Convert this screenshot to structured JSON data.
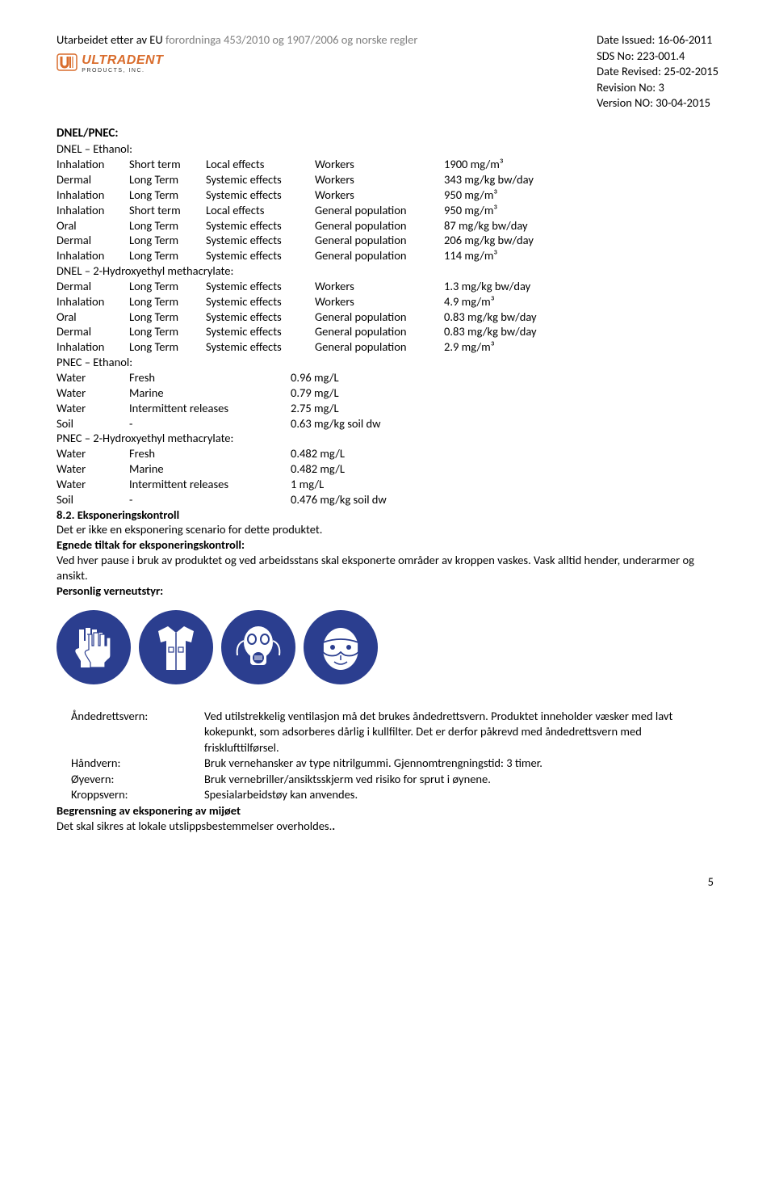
{
  "header": {
    "left_prefix": "Utarbeidet etter av EU ",
    "left_gray": "forordninga 453/2010 og 1907/2006 og norske regler",
    "right": {
      "l1": "Date Issued: 16-06-2011",
      "l2": "SDS No: 223-001.4",
      "l3": "Date Revised: 25-02-2015",
      "l4": "Revision No: 3",
      "l5": "Version NO: 30-04-2015"
    },
    "logo_main": "ULTRADENT",
    "logo_sub": "PRODUCTS, INC."
  },
  "dnel_pnec_title": "DNEL/PNEC:",
  "dnel_ethanol_title": "DNEL – Ethanol:",
  "dnel_ethanol": [
    {
      "a": "Inhalation",
      "b": "Short term",
      "c": "Local effects",
      "d": "Workers",
      "e": "1900 mg/m³"
    },
    {
      "a": "Dermal",
      "b": "Long Term",
      "c": "Systemic effects",
      "d": "Workers",
      "e": "343 mg/kg bw/day"
    },
    {
      "a": "Inhalation",
      "b": "Long Term",
      "c": "Systemic effects",
      "d": "Workers",
      "e": "950 mg/m³"
    },
    {
      "a": "Inhalation",
      "b": "Short term",
      "c": "Local effects",
      "d": "General population",
      "e": "950 mg/m³"
    },
    {
      "a": "Oral",
      "b": "Long Term",
      "c": "Systemic effects",
      "d": "General population",
      "e": "87 mg/kg bw/day"
    },
    {
      "a": "Dermal",
      "b": "Long Term",
      "c": "Systemic effects",
      "d": "General population",
      "e": "206 mg/kg bw/day"
    },
    {
      "a": "Inhalation",
      "b": "Long Term",
      "c": "Systemic effects",
      "d": "General population",
      "e": "114 mg/m³"
    }
  ],
  "dnel_hema_title": "DNEL – 2-Hydroxyethyl methacrylate:",
  "dnel_hema": [
    {
      "a": "Dermal",
      "b": "Long Term",
      "c": "Systemic effects",
      "d": "Workers",
      "e": "1.3 mg/kg bw/day"
    },
    {
      "a": "Inhalation",
      "b": "Long Term",
      "c": "Systemic effects",
      "d": "Workers",
      "e": "4.9 mg/m³"
    },
    {
      "a": "Oral",
      "b": "Long Term",
      "c": "Systemic effects",
      "d": "General population",
      "e": "0.83 mg/kg bw/day"
    },
    {
      "a": "Dermal",
      "b": "Long Term",
      "c": "Systemic effects",
      "d": "General population",
      "e": "0.83 mg/kg bw/day"
    },
    {
      "a": "Inhalation",
      "b": "Long Term",
      "c": "Systemic effects",
      "d": "General population",
      "e": "2.9 mg/m³"
    }
  ],
  "pnec_ethanol_title": "PNEC – Ethanol:",
  "pnec_ethanol": [
    {
      "a": "Water",
      "b": "Fresh",
      "c": "0.96 mg/L"
    },
    {
      "a": "Water",
      "b": "Marine",
      "c": "0.79 mg/L"
    },
    {
      "a": "Water",
      "b": "Intermittent releases",
      "c": "2.75 mg/L"
    },
    {
      "a": "Soil",
      "b": "-",
      "c": "0.63 mg/kg soil dw"
    }
  ],
  "pnec_hema_title": "PNEC – 2-Hydroxyethyl methacrylate:",
  "pnec_hema": [
    {
      "a": "Water",
      "b": "Fresh",
      "c": "0.482 mg/L"
    },
    {
      "a": "Water",
      "b": "Marine",
      "c": "0.482 mg/L"
    },
    {
      "a": "Water",
      "b": "Intermittent releases",
      "c": "1 mg/L"
    },
    {
      "a": "Soil",
      "b": "-",
      "c": "0.476 mg/kg soil dw"
    }
  ],
  "s82_title": "8.2. Eksponeringskontroll",
  "s82_line1": "Det er ikke en eksponering scenario for dette produktet.",
  "s82_sub1": "Egnede tiltak for eksponeringskontroll:",
  "s82_line2": "Ved hver pause i bruk av produktet og ved arbeidsstans skal eksponerte områder av kroppen vaskes. Vask alltid hender, underarmer og ansikt.",
  "s82_sub2": "Personlig verneutstyr:",
  "defs": {
    "andedrett_label": "Åndedrettsvern:",
    "andedrett_val": "Ved utilstrekkelig ventilasjon må det brukes åndedrettsvern. Produktet inneholder væsker med lavt kokepunkt, som adsorberes dårlig i kullfilter. Det er derfor påkrevd med åndedrettsvern med frisklufttilførsel.",
    "hand_label": "Håndvern:",
    "hand_val": "Bruk vernehansker av type nitrilgummi. Gjennomtrengningstid: 3 timer.",
    "oye_label": "Øyevern:",
    "oye_val": "Bruk vernebriller/ansiktsskjerm  ved risiko for sprut i øynene.",
    "kropp_label": "Kroppsvern:",
    "kropp_val": "Spesialarbeidstøy kan anvendes."
  },
  "begrens_title": "Begrensning av eksponering av mijøet",
  "begrens_text": "Det skal sikres at lokale utslippsbestemmelser overholdes.",
  "page_num": "5"
}
